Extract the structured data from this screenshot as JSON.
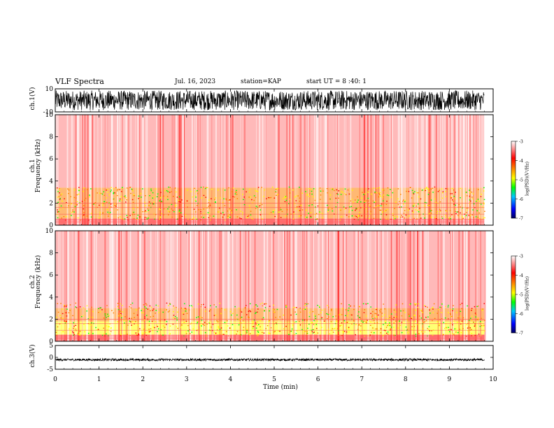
{
  "header": {
    "title": "VLF Spectra",
    "date": "Jul. 16, 2023",
    "station": "station=KAP",
    "start_ut": "start UT = 8 :40: 1"
  },
  "colorbar": {
    "label": "log(PSD)(V²/Hz)",
    "ticks": [
      "-3",
      "-4",
      "-5",
      "-6",
      "-7"
    ],
    "range": [
      -7,
      -3
    ],
    "colors": [
      "#000080",
      "#0000ff",
      "#00aaff",
      "#00ff00",
      "#ffff00",
      "#ff8000",
      "#ff0000",
      "#ff8080",
      "#ffffff"
    ]
  },
  "chart_data": [
    {
      "type": "line",
      "panel": "ch1-waveform",
      "ylabel": "ch.1(V)",
      "ylim": [
        -10,
        10
      ],
      "yticks": [
        "10",
        "-10"
      ],
      "description": "dense broadband waveform oscillating between roughly -10 and 10 V over 0 to 9.8 min"
    },
    {
      "type": "heatmap",
      "panel": "ch1-spectrogram",
      "ylabel_1": "ch.1",
      "ylabel_2": "Frequency (kHz)",
      "ylim": [
        0,
        10
      ],
      "yticks": [
        "0",
        "2",
        "4",
        "6",
        "8",
        "10"
      ],
      "xlim": [
        0,
        9.8
      ],
      "bands": [
        {
          "from_khz": 0,
          "to_khz": 0.6,
          "log_psd": -4.2
        },
        {
          "from_khz": 0.6,
          "to_khz": 2.2,
          "log_psd": -4.6
        },
        {
          "from_khz": 2.2,
          "to_khz": 3.4,
          "log_psd": -4.4
        },
        {
          "from_khz": 3.4,
          "to_khz": 10,
          "log_psd": -3.5
        }
      ]
    },
    {
      "type": "heatmap",
      "panel": "ch2-spectrogram",
      "ylabel_1": "ch.2",
      "ylabel_2": "Frequency (kHz)",
      "ylim": [
        0,
        10
      ],
      "yticks": [
        "0",
        "2",
        "4",
        "6",
        "8",
        "10"
      ],
      "xlim": [
        0,
        9.8
      ],
      "bands": [
        {
          "from_khz": 0,
          "to_khz": 0.6,
          "log_psd": -4.2
        },
        {
          "from_khz": 0.6,
          "to_khz": 1.8,
          "log_psd": -5.0
        },
        {
          "from_khz": 1.8,
          "to_khz": 3.0,
          "log_psd": -4.5
        },
        {
          "from_khz": 3.0,
          "to_khz": 10,
          "log_psd": -3.5
        }
      ]
    },
    {
      "type": "line",
      "panel": "ch3-waveform",
      "ylabel": "ch.3(V)",
      "ylim": [
        -5,
        5
      ],
      "yticks": [
        "5",
        "0",
        "-5"
      ],
      "description": "narrow band of values around -1 V over 0 to 9.8 min"
    }
  ],
  "xaxis": {
    "label": "Time (min)",
    "ticks": [
      "0",
      "1",
      "2",
      "3",
      "4",
      "5",
      "6",
      "7",
      "8",
      "9",
      "10"
    ],
    "xlim": [
      0,
      10
    ]
  }
}
